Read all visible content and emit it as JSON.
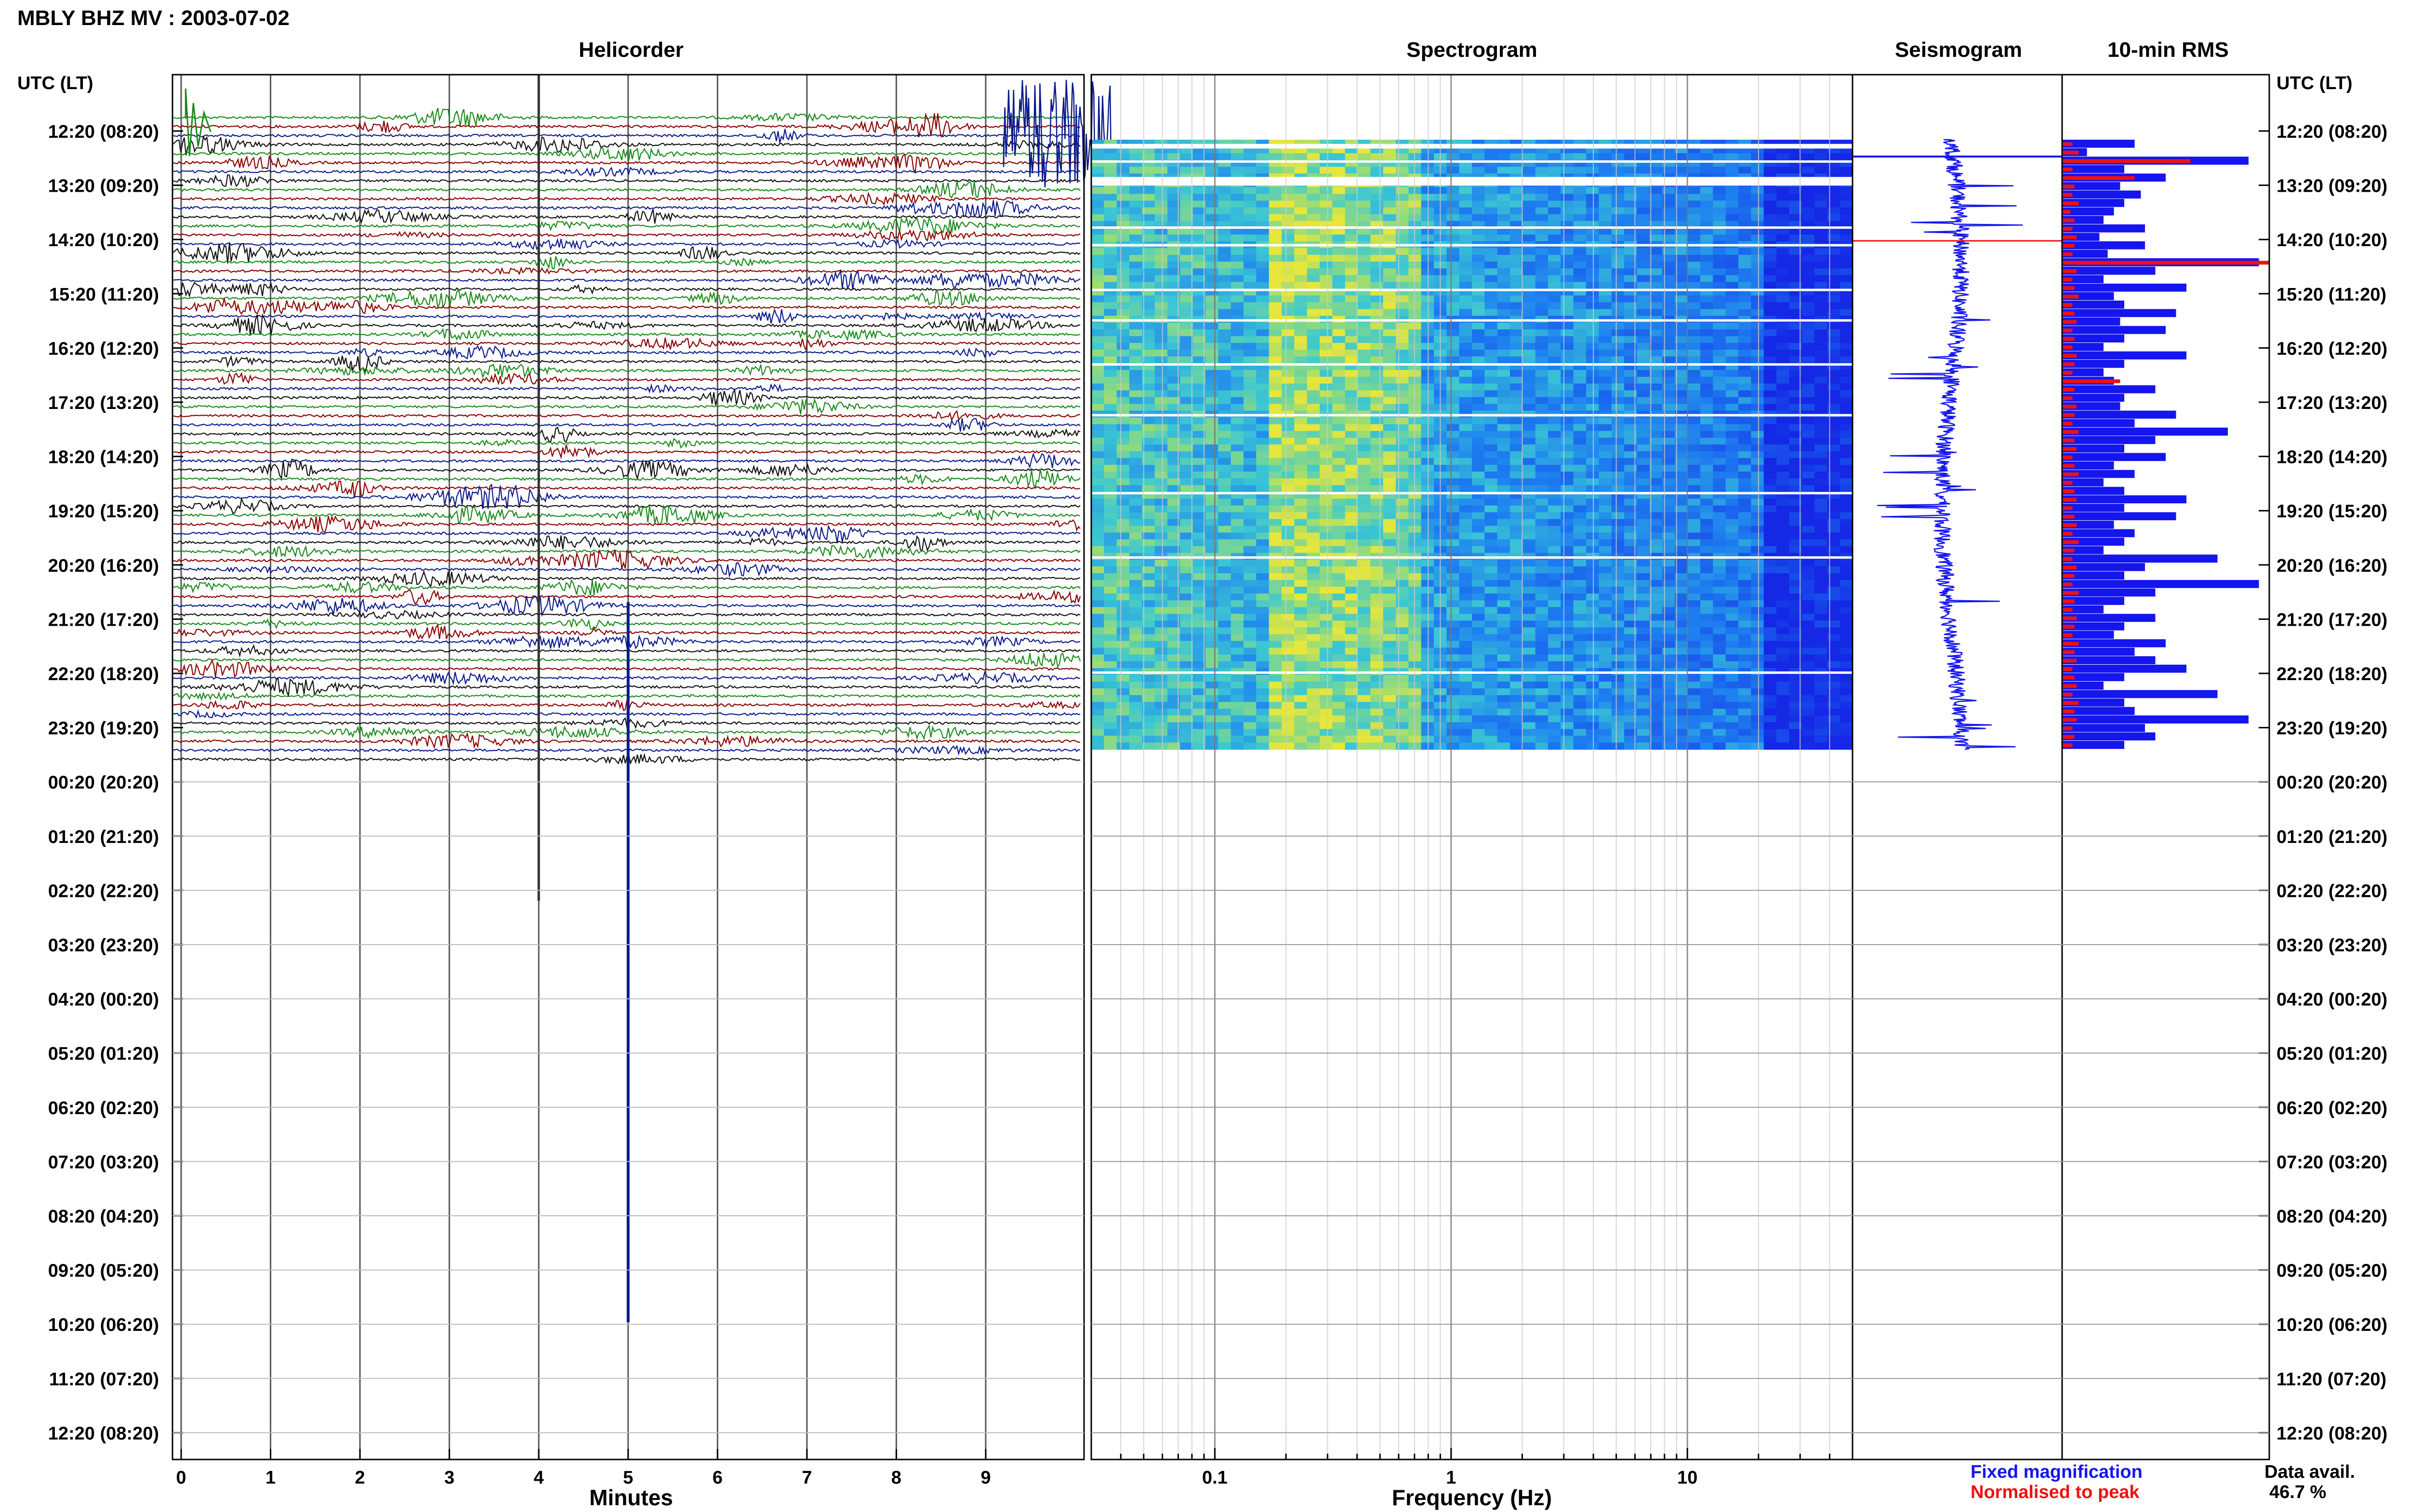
{
  "header": {
    "title": "MBLY BHZ MV : 2003-07-02"
  },
  "panels": {
    "helicorder": "Helicorder",
    "spectrogram": "Spectrogram",
    "seismogram": "Seismogram",
    "rms": "10-min RMS"
  },
  "time_axis_header": "UTC (LT)",
  "footer": {
    "fixed_label": "Fixed magnification",
    "normalised_label": "Normalised to peak",
    "data_avail_label": "Data avail.",
    "data_avail_value": "46.7 %"
  },
  "colors": {
    "trace_green": "#1a8a1a",
    "trace_red": "#8b0000",
    "trace_blue": "#0a1a8c",
    "trace_black": "#111111",
    "fixed": "#1515ee",
    "normalised": "#ee1111"
  },
  "chart_data": [
    {
      "type": "line",
      "name": "helicorder",
      "title": "Helicorder",
      "xlabel": "Minutes",
      "x_ticks": [
        "0",
        "1",
        "2",
        "3",
        "4",
        "5",
        "6",
        "7",
        "8",
        "9"
      ],
      "xlim": [
        0,
        10
      ],
      "row_labels": [
        "12:20 (08:20)",
        "13:20 (09:20)",
        "14:20 (10:20)",
        "15:20 (11:20)",
        "16:20 (12:20)",
        "17:20 (13:20)",
        "18:20 (14:20)",
        "19:20 (15:20)",
        "20:20 (16:20)",
        "21:20 (17:20)",
        "22:20 (18:20)",
        "23:20 (19:20)",
        "00:20 (20:20)",
        "01:20 (21:20)",
        "02:20 (22:20)",
        "03:20 (23:20)",
        "04:20 (00:20)",
        "05:20 (01:20)",
        "06:20 (02:20)",
        "07:20 (03:20)",
        "08:20 (04:20)",
        "09:20 (05:20)",
        "10:20 (06:20)",
        "11:20 (07:20)",
        "12:20 (08:20)"
      ],
      "trace_color_cycle": [
        "green",
        "red",
        "blue",
        "black"
      ],
      "rows_per_hour": 6
    },
    {
      "type": "heatmap",
      "name": "spectrogram",
      "title": "Spectrogram",
      "xlabel": "Frequency (Hz)",
      "x_scale": "log",
      "x_ticks": [
        "0.1",
        "1",
        "10"
      ],
      "xlim_hz": [
        0.03,
        50
      ]
    },
    {
      "type": "line",
      "name": "seismogram",
      "title": "Seismogram"
    },
    {
      "type": "bar",
      "name": "rms",
      "title": "10-min RMS",
      "series": [
        {
          "name": "Fixed magnification",
          "color": "#1515ee",
          "values": [
            0.35,
            0.12,
            0.9,
            0.3,
            0.5,
            0.28,
            0.38,
            0.3,
            0.25,
            0.2,
            0.4,
            0.18,
            0.4,
            0.22,
            0.95,
            0.45,
            0.2,
            0.6,
            0.25,
            0.3,
            0.55,
            0.28,
            0.5,
            0.3,
            0.2,
            0.6,
            0.3,
            0.2,
            0.25,
            0.45,
            0.3,
            0.28,
            0.55,
            0.35,
            0.8,
            0.45,
            0.3,
            0.5,
            0.25,
            0.35,
            0.2,
            0.3,
            0.6,
            0.3,
            0.55,
            0.25,
            0.35,
            0.3,
            0.2,
            0.75,
            0.4,
            0.3,
            0.95,
            0.45,
            0.3,
            0.2,
            0.45,
            0.3,
            0.25,
            0.5,
            0.35,
            0.45,
            0.6,
            0.3,
            0.2,
            0.75,
            0.3,
            0.35,
            0.9,
            0.4,
            0.45,
            0.3
          ]
        },
        {
          "name": "Normalised to peak",
          "color": "#ee1111",
          "values": [
            0.05,
            0.08,
            0.62,
            0.05,
            0.35,
            0.06,
            0.05,
            0.08,
            0.04,
            0.06,
            0.05,
            0.07,
            0.06,
            0.05,
            1.0,
            0.07,
            0.05,
            0.06,
            0.08,
            0.05,
            0.06,
            0.07,
            0.05,
            0.06,
            0.05,
            0.07,
            0.06,
            0.05,
            0.28,
            0.06,
            0.05,
            0.07,
            0.06,
            0.05,
            0.08,
            0.06,
            0.07,
            0.05,
            0.06,
            0.08,
            0.05,
            0.06,
            0.07,
            0.05,
            0.06,
            0.07,
            0.05,
            0.08,
            0.06,
            0.05,
            0.07,
            0.06,
            0.05,
            0.08,
            0.06,
            0.05,
            0.07,
            0.06,
            0.05,
            0.08,
            0.06,
            0.07,
            0.05,
            0.06,
            0.07,
            0.05,
            0.08,
            0.06,
            0.07,
            0.05,
            0.06,
            0.05
          ]
        }
      ]
    }
  ]
}
